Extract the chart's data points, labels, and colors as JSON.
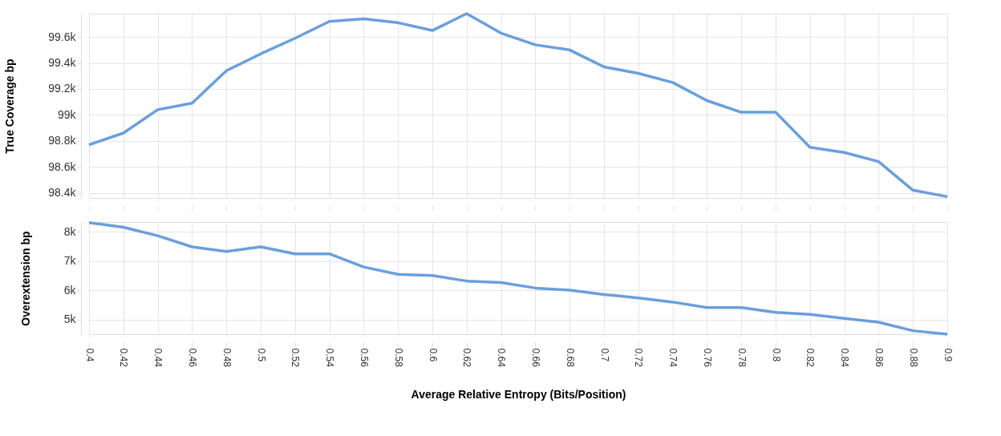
{
  "chart_data": [
    {
      "type": "line",
      "ylabel": "True Coverage bp",
      "x": [
        0.4,
        0.42,
        0.44,
        0.46,
        0.48,
        0.5,
        0.52,
        0.54,
        0.56,
        0.58,
        0.6,
        0.62,
        0.64,
        0.66,
        0.68,
        0.7,
        0.72,
        0.74,
        0.76,
        0.78,
        0.8,
        0.82,
        0.84,
        0.86,
        0.88,
        0.9
      ],
      "series": [
        {
          "color": "#6a9fdc",
          "values": [
            98770,
            98860,
            99040,
            99090,
            99340,
            99470,
            99590,
            99720,
            99740,
            99710,
            99650,
            99780,
            99630,
            99540,
            99500,
            99370,
            99320,
            99250,
            99110,
            99020,
            99020,
            98750,
            98710,
            98640,
            98420,
            98370
          ]
        }
      ],
      "xlim": [
        0.4,
        0.9
      ],
      "xticks": [
        0.4,
        0.42,
        0.44,
        0.46,
        0.48,
        0.5,
        0.52,
        0.54,
        0.56,
        0.58,
        0.6,
        0.62,
        0.64,
        0.66,
        0.68,
        0.7,
        0.72,
        0.74,
        0.76,
        0.78,
        0.8,
        0.82,
        0.84,
        0.86,
        0.88,
        0.9
      ],
      "ylim": [
        98360,
        99780
      ],
      "yticks": [
        {
          "value": 98400,
          "label": "98.4k"
        },
        {
          "value": 98600,
          "label": "98.6k"
        },
        {
          "value": 98800,
          "label": "98.8k"
        },
        {
          "value": 99000,
          "label": "99k"
        },
        {
          "value": 99200,
          "label": "99.2k"
        },
        {
          "value": 99400,
          "label": "99.4k"
        },
        {
          "value": 99600,
          "label": "99.6k"
        }
      ],
      "grid": true,
      "tick_labels": "y",
      "marker": "none",
      "line_style": "solid"
    },
    {
      "type": "line",
      "ylabel": "Overextension bp",
      "xlabel": "Average Relative Entropy (Bits/Position)",
      "x": [
        0.4,
        0.42,
        0.44,
        0.46,
        0.48,
        0.5,
        0.52,
        0.54,
        0.56,
        0.58,
        0.6,
        0.62,
        0.64,
        0.66,
        0.68,
        0.7,
        0.72,
        0.74,
        0.76,
        0.78,
        0.8,
        0.82,
        0.84,
        0.86,
        0.88,
        0.9
      ],
      "series": [
        {
          "color": "#6a9fdc",
          "values": [
            8320,
            8160,
            7870,
            7490,
            7330,
            7490,
            7250,
            7250,
            6800,
            6550,
            6510,
            6320,
            6270,
            6080,
            6010,
            5860,
            5740,
            5600,
            5410,
            5410,
            5250,
            5180,
            5040,
            4910,
            4620,
            4500
          ]
        }
      ],
      "xlim": [
        0.4,
        0.9
      ],
      "xticks": [
        0.4,
        0.42,
        0.44,
        0.46,
        0.48,
        0.5,
        0.52,
        0.54,
        0.56,
        0.58,
        0.6,
        0.62,
        0.64,
        0.66,
        0.68,
        0.7,
        0.72,
        0.74,
        0.76,
        0.78,
        0.8,
        0.82,
        0.84,
        0.86,
        0.88,
        0.9
      ],
      "ylim": [
        4500,
        8340
      ],
      "yticks": [
        {
          "value": 5000,
          "label": "5k"
        },
        {
          "value": 6000,
          "label": "6k"
        },
        {
          "value": 7000,
          "label": "7k"
        },
        {
          "value": 8000,
          "label": "8k"
        }
      ],
      "grid": true,
      "marker": "none",
      "line_style": "solid"
    }
  ]
}
